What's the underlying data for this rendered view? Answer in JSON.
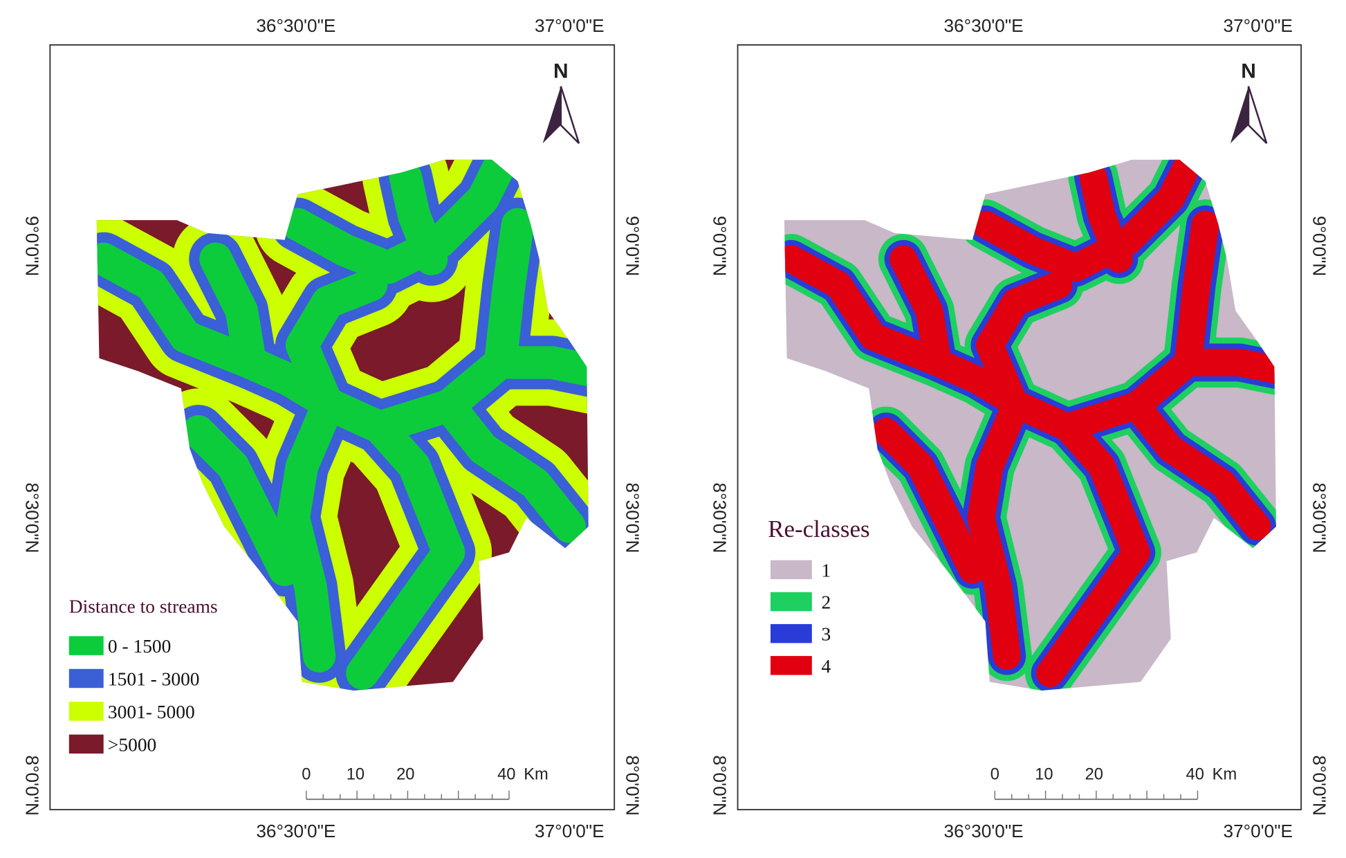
{
  "panels": [
    {
      "top_labels": [
        "36°30'0\"E",
        "37°0'0\"E"
      ],
      "bottom_labels": [
        "36°30'0\"E",
        "37°0'0\"E"
      ],
      "left_labels": [
        "9°0'0\"N",
        "8°30'0\"N",
        "8°0'0\"N"
      ],
      "right_labels": [
        "9°0'0\"N",
        "8°30'0\"N",
        "8°0'0\"N"
      ],
      "north": "N",
      "scale": {
        "labels": [
          "0",
          "10",
          "20",
          "40"
        ],
        "unit": "Km"
      },
      "legend": {
        "title": "Distance to streams",
        "items": [
          "0 - 1500",
          "1501 - 3000",
          "3001- 5000",
          ">5000"
        ]
      }
    },
    {
      "top_labels": [
        "36°30'0\"E",
        "37°0'0\"E"
      ],
      "bottom_labels": [
        "36°30'0\"E",
        "37°0'0\"E"
      ],
      "left_labels": [
        "9°0'0\"N",
        "8°30'0\"N",
        "8°0'0\"N"
      ],
      "right_labels": [
        "9°0'0\"N",
        "8°30'0\"N",
        "8°0'0\"N"
      ],
      "north": "N",
      "scale": {
        "labels": [
          "0",
          "10",
          "20",
          "40"
        ],
        "unit": "Km"
      },
      "legend": {
        "title": "Re-classes",
        "items": [
          "1",
          "2",
          "3",
          "4"
        ]
      }
    }
  ]
}
